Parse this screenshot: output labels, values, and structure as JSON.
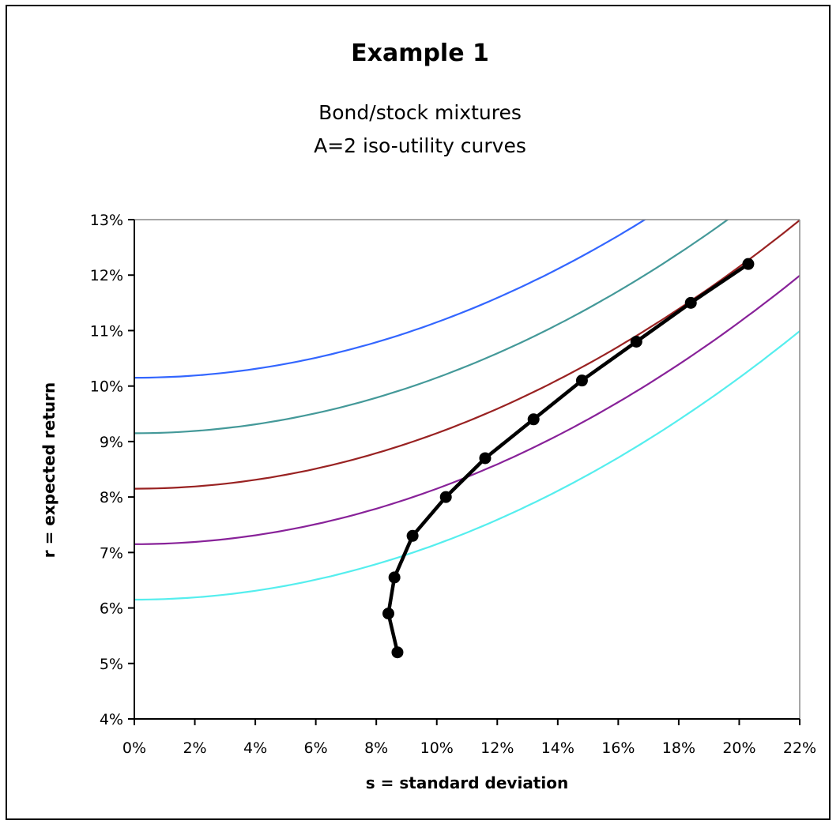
{
  "chart_data": {
    "type": "line",
    "title": "Example 1",
    "subtitle": [
      "Bond/stock mixtures",
      "A=2 iso-utility curves"
    ],
    "xlabel": "s = standard deviation",
    "ylabel": "r = expected return",
    "xlim": [
      0,
      22
    ],
    "ylim": [
      4,
      13
    ],
    "x_ticks": [
      "0%",
      "2%",
      "4%",
      "6%",
      "8%",
      "10%",
      "12%",
      "14%",
      "16%",
      "18%",
      "20%",
      "22%"
    ],
    "y_ticks": [
      "4%",
      "5%",
      "6%",
      "7%",
      "8%",
      "9%",
      "10%",
      "11%",
      "12%",
      "13%"
    ],
    "grid": false,
    "legend": "none",
    "iso_utility_curves": [
      {
        "base_utility": 10.15,
        "color": "#3366ff"
      },
      {
        "base_utility": 9.15,
        "color": "#449999"
      },
      {
        "base_utility": 8.15,
        "color": "#992222"
      },
      {
        "base_utility": 7.15,
        "color": "#882299"
      },
      {
        "base_utility": 6.15,
        "color": "#55eeee"
      }
    ],
    "frontier": {
      "color": "#000000",
      "points": [
        {
          "x": 8.7,
          "y": 5.2
        },
        {
          "x": 8.4,
          "y": 5.9
        },
        {
          "x": 8.6,
          "y": 6.55
        },
        {
          "x": 9.2,
          "y": 7.3
        },
        {
          "x": 10.3,
          "y": 8.0
        },
        {
          "x": 11.6,
          "y": 8.7
        },
        {
          "x": 13.2,
          "y": 9.4
        },
        {
          "x": 14.8,
          "y": 10.1
        },
        {
          "x": 16.6,
          "y": 10.8
        },
        {
          "x": 18.4,
          "y": 11.5
        },
        {
          "x": 20.3,
          "y": 12.2
        }
      ]
    }
  }
}
